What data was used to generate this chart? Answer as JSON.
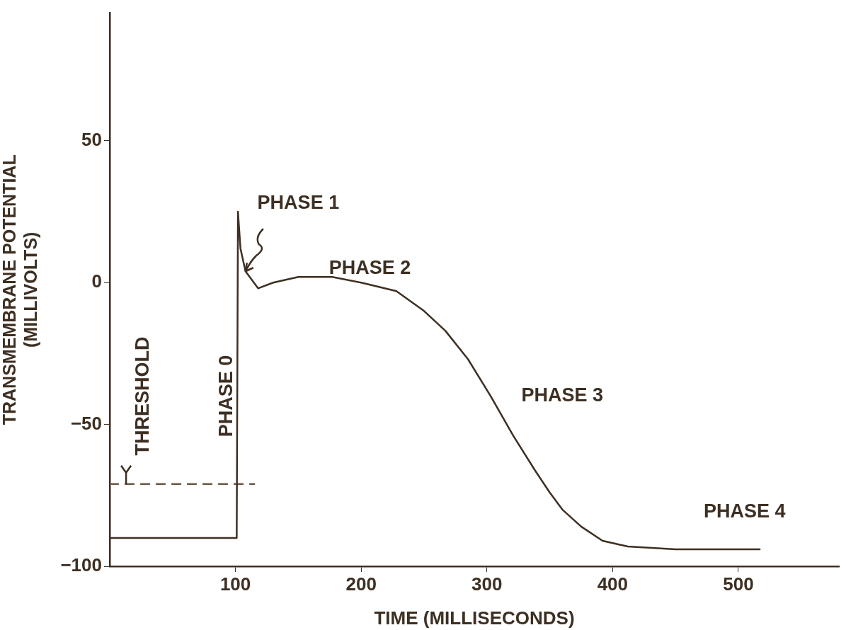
{
  "chart_data": {
    "type": "line",
    "xlabel": "TIME (MILLISECONDS)",
    "ylabel": "TRANSMEMBRANE POTENTIAL\n(MILLIVOLTS)",
    "xlim": [
      0,
      580
    ],
    "xticks": [
      100,
      200,
      300,
      400,
      500
    ],
    "ylim": [
      -100,
      95
    ],
    "yticks": [
      -100,
      -50,
      0,
      50
    ],
    "grid": false,
    "legend": false,
    "marker": "none",
    "series": [
      {
        "color": "#3d2f22",
        "line_style": "solid",
        "x": [
          0,
          101,
          102,
          104,
          108,
          113,
          118,
          130,
          150,
          177,
          200,
          228,
          250,
          267,
          285,
          303,
          321,
          338,
          350,
          360,
          375,
          392,
          412,
          450,
          517
        ],
        "values": [
          -90,
          -90,
          25,
          12,
          4,
          1,
          -2,
          0,
          2,
          2,
          0,
          -3,
          -10,
          -17,
          -27,
          -40,
          -54,
          -66,
          -74,
          -80,
          -86,
          -91,
          -93,
          -94,
          -94
        ]
      },
      {
        "color": "#6b5a48",
        "line_style": "dashed",
        "x": [
          0,
          115
        ],
        "values": [
          -71,
          -71
        ]
      }
    ],
    "annotations": [
      {
        "text": "THRESHOLD",
        "x": 13,
        "y": -71
      },
      "PHASE 0",
      {
        "text": "PHASE 1",
        "x": 108,
        "y": 4
      },
      "PHASE 2",
      "PHASE 3",
      "PHASE 4"
    ]
  }
}
